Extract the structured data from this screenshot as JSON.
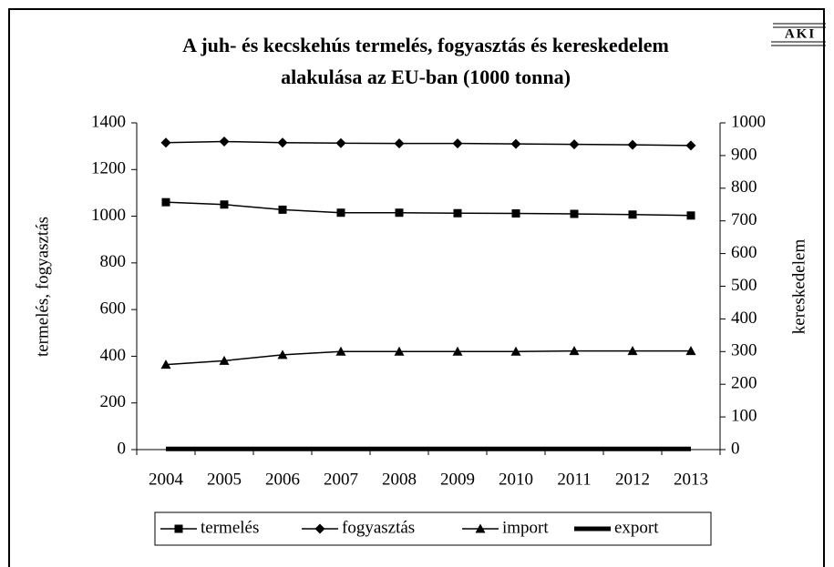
{
  "chart_data": {
    "type": "line",
    "title": [
      "A juh- és kecskehús termelés, fogyasztás és kereskedelem",
      "alakulása az EU-ban (1000 tonna)"
    ],
    "logo": "AKI",
    "ylabel": "termelés, fogyasztás",
    "y2label": "kereskedelem",
    "categories": [
      "2004",
      "2005",
      "2006",
      "2007",
      "2008",
      "2009",
      "2010",
      "2011",
      "2012",
      "2013"
    ],
    "series": [
      {
        "name": "termelés",
        "color": "#000000",
        "marker": "square",
        "values": [
          1060,
          1050,
          1028,
          1015,
          1015,
          1013,
          1012,
          1010,
          1007,
          1003
        ]
      },
      {
        "name": "fogyasztás",
        "color": "#000000",
        "marker": "diamond",
        "values": [
          1315,
          1320,
          1315,
          1313,
          1312,
          1312,
          1310,
          1308,
          1306,
          1303
        ]
      },
      {
        "name": "import",
        "color": "#000000",
        "marker": "triangle",
        "axis": "y2",
        "values": [
          260,
          272,
          290,
          300,
          300,
          300,
          300,
          302,
          302,
          302
        ]
      },
      {
        "name": "export",
        "color": "#000000",
        "marker": "none",
        "axis": "y2",
        "values": [
          2,
          2,
          2,
          2,
          2,
          2,
          2,
          2,
          2,
          2
        ]
      }
    ],
    "ylim": [
      0,
      1400
    ],
    "yticks": [
      0,
      200,
      400,
      600,
      800,
      1000,
      1200,
      1400
    ],
    "y2lim": [
      0,
      1000
    ],
    "y2ticks": [
      0,
      100,
      200,
      300,
      400,
      500,
      600,
      700,
      800,
      900,
      1000
    ],
    "legend": "bottom"
  }
}
